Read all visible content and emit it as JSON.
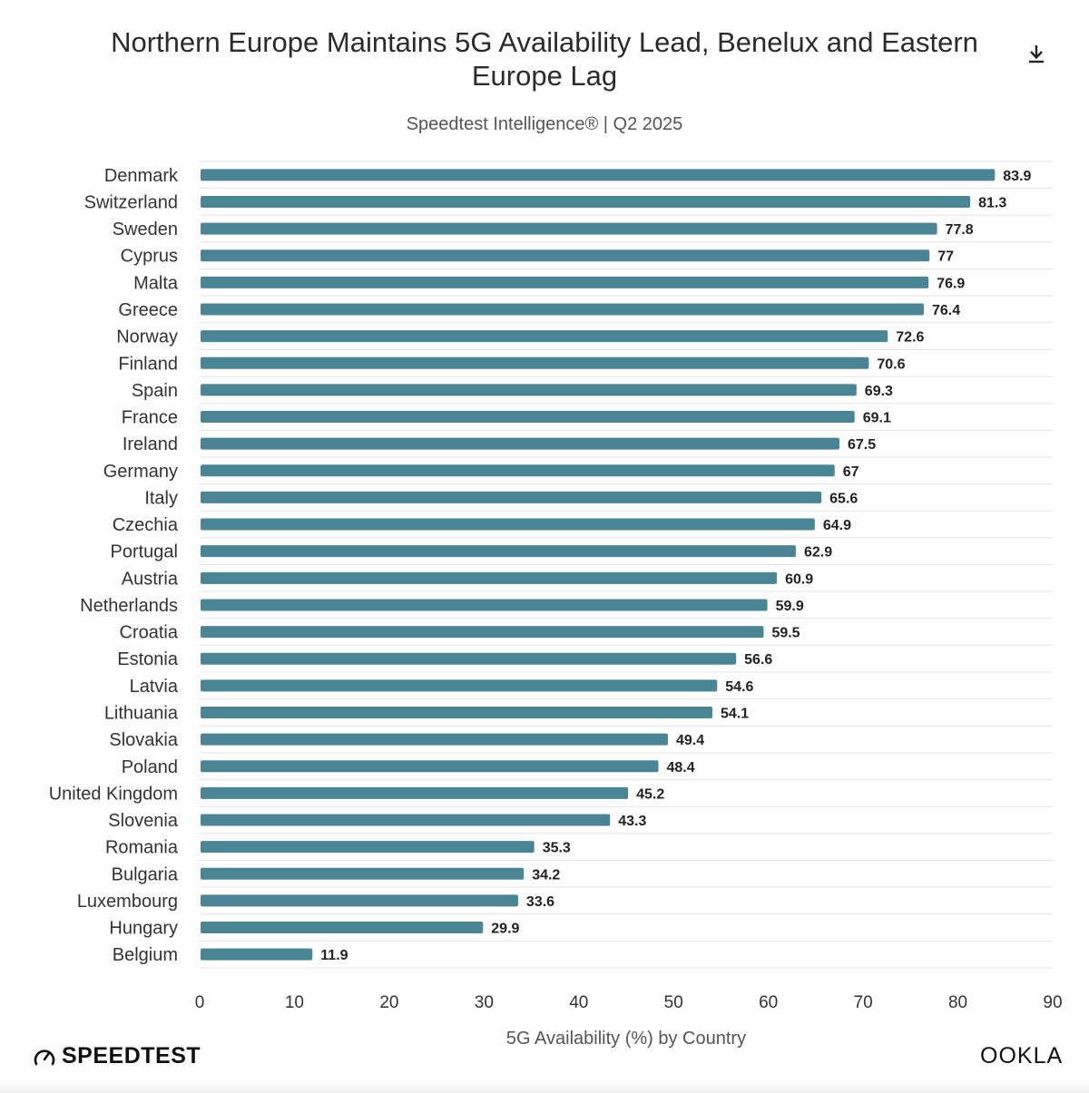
{
  "header": {
    "title": "Northern Europe Maintains 5G Availability Lead, Benelux and Eastern Europe Lag",
    "subtitle": "Speedtest Intelligence® | Q2 2025",
    "download_icon": "download-icon"
  },
  "footer": {
    "brand_left": "SPEEDTEST",
    "brand_left_icon": "speedometer-icon",
    "brand_right": "OOKLA"
  },
  "colors": {
    "bar": "#4a8596",
    "grid": "#e3e3e3",
    "label": "#333333"
  },
  "chart_data": {
    "type": "bar",
    "orientation": "horizontal",
    "title": "Northern Europe Maintains 5G Availability Lead, Benelux and Eastern Europe Lag",
    "subtitle": "Speedtest Intelligence® | Q2 2025",
    "xlabel": "5G Availability (%) by Country",
    "ylabel": "",
    "xlim": [
      0,
      90
    ],
    "xticks": [
      0,
      10,
      20,
      30,
      40,
      50,
      60,
      70,
      80,
      90
    ],
    "grid": true,
    "categories": [
      "Denmark",
      "Switzerland",
      "Sweden",
      "Cyprus",
      "Malta",
      "Greece",
      "Norway",
      "Finland",
      "Spain",
      "France",
      "Ireland",
      "Germany",
      "Italy",
      "Czechia",
      "Portugal",
      "Austria",
      "Netherlands",
      "Croatia",
      "Estonia",
      "Latvia",
      "Lithuania",
      "Slovakia",
      "Poland",
      "United Kingdom",
      "Slovenia",
      "Romania",
      "Bulgaria",
      "Luxembourg",
      "Hungary",
      "Belgium"
    ],
    "values": [
      83.9,
      81.3,
      77.8,
      77,
      76.9,
      76.4,
      72.6,
      70.6,
      69.3,
      69.1,
      67.5,
      67,
      65.6,
      64.9,
      62.9,
      60.9,
      59.9,
      59.5,
      56.6,
      54.6,
      54.1,
      49.4,
      48.4,
      45.2,
      43.3,
      35.3,
      34.2,
      33.6,
      29.9,
      11.9
    ]
  }
}
